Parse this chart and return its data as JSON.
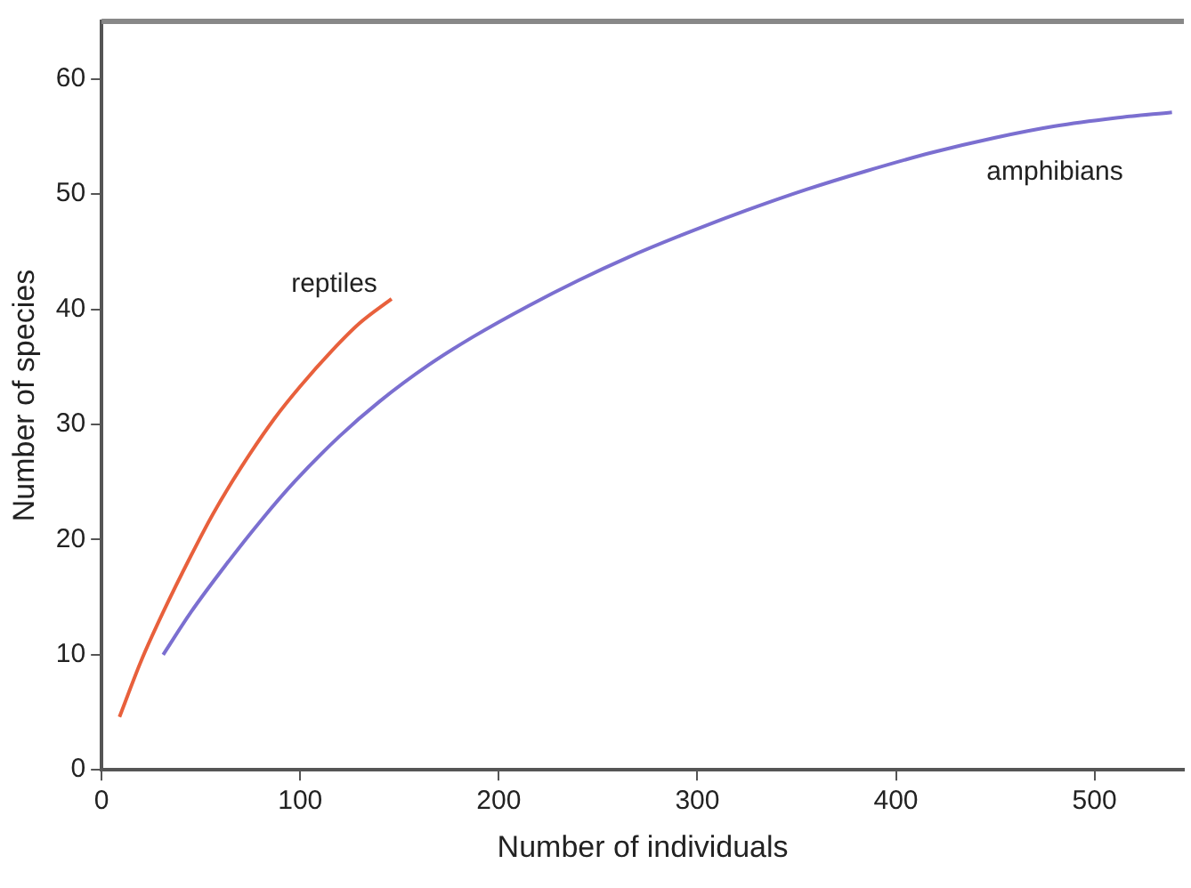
{
  "chart_data": {
    "type": "line",
    "xlabel": "Number of individuals",
    "ylabel": "Number of species",
    "xlim": [
      0,
      545
    ],
    "xticks": [
      0,
      100,
      200,
      300,
      400,
      500
    ],
    "ylim": [
      0,
      65
    ],
    "yticks": [
      0,
      10,
      20,
      30,
      40,
      50,
      60
    ],
    "grid": false,
    "legend": false,
    "marker": "none",
    "line_style": "solid",
    "series": [
      {
        "name": "reptiles",
        "color": "#e8603c",
        "x": [
          9,
          20,
          31,
          45,
          56,
          70,
          87,
          100,
          116,
          130,
          146
        ],
        "values": [
          4.6,
          9.5,
          13.7,
          18.6,
          22.2,
          26.2,
          30.5,
          33.3,
          36.4,
          38.8,
          40.9
        ]
      },
      {
        "name": "amphibians",
        "color": "#7b6fd0",
        "x": [
          31,
          45,
          63,
          80,
          97,
          120,
          140,
          165,
          187,
          215,
          240,
          265,
          293,
          325,
          355,
          385,
          418,
          450,
          480,
          510,
          539
        ],
        "values": [
          10,
          13.7,
          17.9,
          21.6,
          25,
          29,
          32,
          35.2,
          37.6,
          40.3,
          42.5,
          44.5,
          46.5,
          48.6,
          50.4,
          52,
          53.6,
          54.9,
          55.9,
          56.6,
          57.1
        ]
      }
    ]
  }
}
